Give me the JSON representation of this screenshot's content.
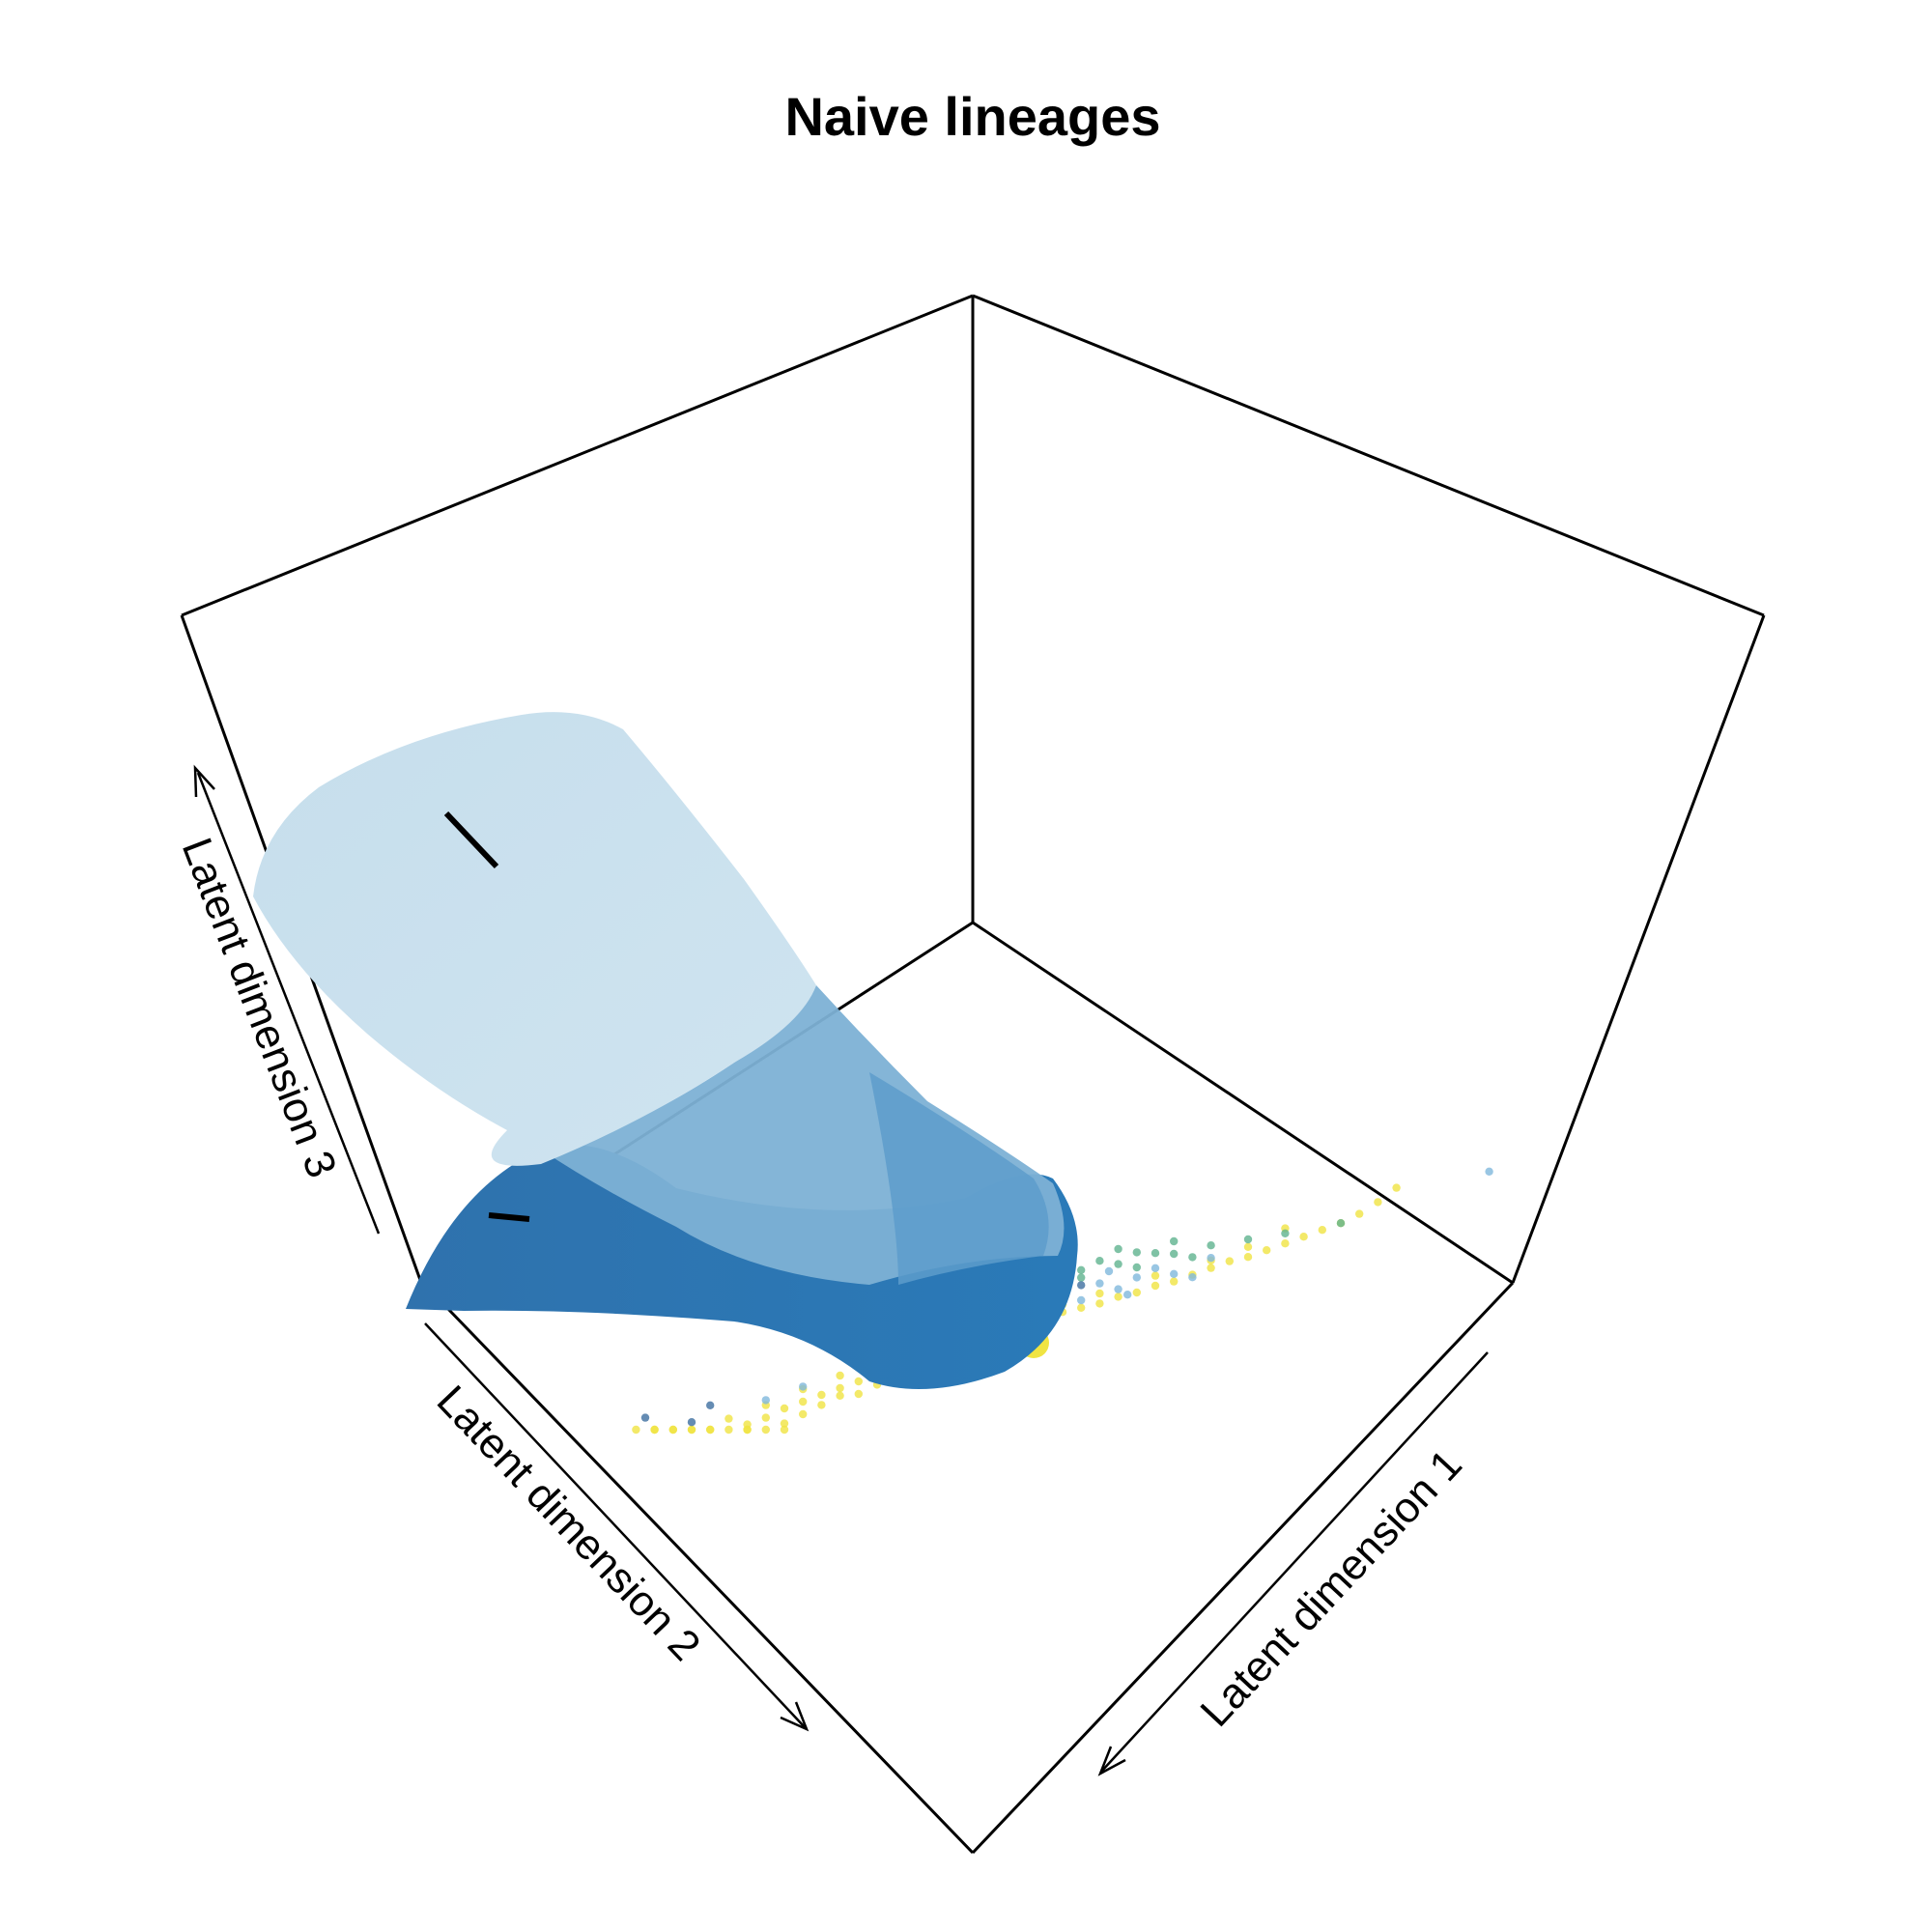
{
  "chart_data": {
    "type": "scatter",
    "subtype": "3d-perspective-scatter-with-lineage-tubes",
    "title": "Naive lineages",
    "axes": {
      "x": {
        "label": "Latent dimension 1"
      },
      "y": {
        "label": "Latent dimension 2"
      },
      "z": {
        "label": "Latent dimension 3"
      }
    },
    "grid": false,
    "legend": "none",
    "colors": {
      "yellow": "#f0e442",
      "green": "#5fb38f",
      "skyblue": "#7fb8dc",
      "navy": "#3f6fa0",
      "tube_light": "#c9e0ee",
      "tube_mid": "#8fbcd9",
      "tube_dark": "#2f78b4"
    },
    "series": [
      {
        "color": "#f0e442",
        "points": [
          [
            0.86,
            0.62
          ],
          [
            0.84,
            0.58
          ],
          [
            0.82,
            0.55
          ],
          [
            0.8,
            0.53
          ],
          [
            0.78,
            0.52
          ],
          [
            0.76,
            0.51
          ],
          [
            0.74,
            0.5
          ],
          [
            0.72,
            0.49
          ],
          [
            0.7,
            0.48
          ],
          [
            0.68,
            0.48
          ],
          [
            0.66,
            0.47
          ],
          [
            0.64,
            0.46
          ],
          [
            0.62,
            0.45
          ],
          [
            0.6,
            0.45
          ],
          [
            0.58,
            0.44
          ],
          [
            0.56,
            0.44
          ],
          [
            0.54,
            0.43
          ],
          [
            0.52,
            0.43
          ],
          [
            0.5,
            0.43
          ],
          [
            0.48,
            0.43
          ],
          [
            0.46,
            0.42
          ],
          [
            0.44,
            0.42
          ],
          [
            0.42,
            0.42
          ],
          [
            0.4,
            0.41
          ],
          [
            0.38,
            0.4
          ],
          [
            0.36,
            0.39
          ],
          [
            0.34,
            0.38
          ],
          [
            0.32,
            0.37
          ],
          [
            0.3,
            0.35
          ],
          [
            0.28,
            0.34
          ],
          [
            0.26,
            0.33
          ],
          [
            0.24,
            0.32
          ],
          [
            0.22,
            0.31
          ],
          [
            0.2,
            0.3
          ],
          [
            0.18,
            0.28
          ],
          [
            0.16,
            0.27
          ],
          [
            0.14,
            0.26
          ],
          [
            0.12,
            0.25
          ],
          [
            0.1,
            0.24
          ],
          [
            0.08,
            0.23
          ],
          [
            0.06,
            0.21
          ],
          [
            0.04,
            0.2
          ],
          [
            0.3,
            0.31
          ],
          [
            0.26,
            0.3
          ],
          [
            0.24,
            0.28
          ],
          [
            0.22,
            0.26
          ],
          [
            0.2,
            0.24
          ],
          [
            0.18,
            0.23
          ],
          [
            0.16,
            0.2
          ],
          [
            0.12,
            0.19
          ],
          [
            0.1,
            0.16
          ],
          [
            0.22,
            0.36
          ],
          [
            0.18,
            0.33
          ],
          [
            0.14,
            0.31
          ],
          [
            0.26,
            0.38
          ],
          [
            0.32,
            0.4
          ],
          [
            0.5,
            0.46
          ],
          [
            0.54,
            0.47
          ],
          [
            0.6,
            0.49
          ],
          [
            0.7,
            0.52
          ],
          [
            0.74,
            0.56
          ],
          [
            0.66,
            0.5
          ],
          [
            0.46,
            0.4
          ],
          [
            0.42,
            0.39
          ],
          [
            0.36,
            0.36
          ],
          [
            0.28,
            0.29
          ],
          [
            0.08,
            0.18
          ],
          [
            0.06,
            0.15
          ],
          [
            0.2,
            0.19
          ],
          [
            0.16,
            0.17
          ]
        ]
      },
      {
        "color": "#5fb38f",
        "points": [
          [
            0.62,
            0.56
          ],
          [
            0.6,
            0.58
          ],
          [
            0.58,
            0.6
          ],
          [
            0.56,
            0.57
          ],
          [
            0.54,
            0.6
          ],
          [
            0.52,
            0.58
          ],
          [
            0.5,
            0.61
          ],
          [
            0.48,
            0.59
          ],
          [
            0.46,
            0.62
          ],
          [
            0.44,
            0.6
          ],
          [
            0.66,
            0.56
          ],
          [
            0.7,
            0.55
          ],
          [
            0.74,
            0.54
          ],
          [
            0.64,
            0.53
          ],
          [
            0.58,
            0.54
          ],
          [
            0.52,
            0.55
          ],
          [
            0.48,
            0.56
          ],
          [
            0.56,
            0.63
          ],
          [
            0.5,
            0.64
          ],
          [
            0.62,
            0.61
          ],
          [
            0.8,
            0.53
          ]
        ]
      },
      {
        "color": "#7fb8dc",
        "points": [
          [
            0.58,
            0.5
          ],
          [
            0.54,
            0.51
          ],
          [
            0.5,
            0.49
          ],
          [
            0.56,
            0.47
          ],
          [
            0.52,
            0.46
          ],
          [
            0.48,
            0.48
          ],
          [
            0.6,
            0.52
          ],
          [
            0.62,
            0.48
          ],
          [
            0.46,
            0.52
          ],
          [
            0.44,
            0.5
          ],
          [
            0.4,
            0.47
          ],
          [
            0.36,
            0.46
          ],
          [
            0.66,
            0.51
          ],
          [
            0.64,
            0.45
          ],
          [
            0.57,
            0.44
          ],
          [
            0.55,
            0.55
          ],
          [
            0.5,
            0.53
          ],
          [
            0.22,
            0.37
          ],
          [
            0.18,
            0.35
          ],
          [
            0.3,
            0.36
          ],
          [
            0.96,
            0.6
          ]
        ]
      },
      {
        "color": "#3f6fa0",
        "points": [
          [
            0.46,
            0.65
          ],
          [
            0.44,
            0.62
          ],
          [
            0.5,
            0.67
          ],
          [
            0.42,
            0.57
          ],
          [
            0.52,
            0.52
          ],
          [
            0.12,
            0.38
          ],
          [
            0.1,
            0.33
          ],
          [
            0.05,
            0.39
          ]
        ]
      }
    ],
    "annotations": [
      "Latent dimension 3",
      "Latent dimension 2",
      "Latent dimension 1"
    ]
  }
}
